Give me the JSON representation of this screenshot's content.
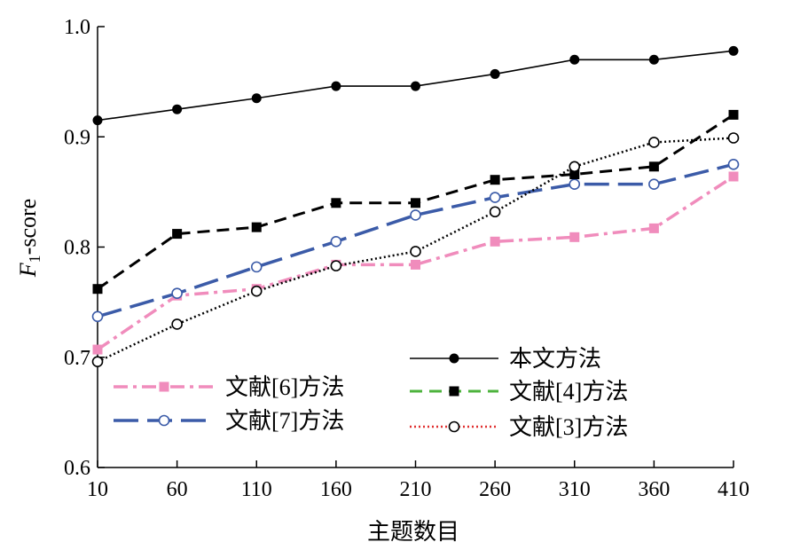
{
  "chart_data": {
    "type": "line",
    "title": "",
    "xlabel": "主题数目",
    "ylabel_italic": "F",
    "ylabel_sub": "1",
    "ylabel_rest": "-score",
    "x": [
      10,
      60,
      110,
      160,
      210,
      260,
      310,
      360,
      410
    ],
    "xlim": [
      10,
      410
    ],
    "ylim": [
      0.6,
      1.0
    ],
    "yticks": [
      "0.6",
      "0.7",
      "0.8",
      "0.9",
      "1.0"
    ],
    "xticks": [
      "10",
      "60",
      "110",
      "160",
      "210",
      "260",
      "310",
      "360",
      "410"
    ],
    "grid": false,
    "series": [
      {
        "name": "本文方法",
        "values": [
          0.915,
          0.925,
          0.935,
          0.946,
          0.946,
          0.957,
          0.97,
          0.97,
          0.978
        ],
        "color": "#000000",
        "line_style": "solid",
        "marker": "filled-circle",
        "marker_color": "#000000"
      },
      {
        "name": "文献[4]方法",
        "values": [
          0.762,
          0.812,
          0.818,
          0.84,
          0.84,
          0.861,
          0.866,
          0.873,
          0.92
        ],
        "color": "#000000",
        "legend_color": "#4db33d",
        "line_style": "dashed",
        "marker": "filled-square",
        "marker_color": "#000000"
      },
      {
        "name": "文献[3]方法",
        "values": [
          0.696,
          0.73,
          0.76,
          0.783,
          0.796,
          0.832,
          0.873,
          0.895,
          0.899
        ],
        "color": "#000000",
        "legend_color": "#e03030",
        "line_style": "dotted",
        "marker": "open-circle",
        "marker_color": "#000000"
      },
      {
        "name": "文献[6]方法",
        "values": [
          0.707,
          0.756,
          0.762,
          0.784,
          0.784,
          0.805,
          0.809,
          0.817,
          0.864
        ],
        "color": "#f08cbc",
        "line_style": "dashdot",
        "marker": "filled-square",
        "marker_color": "#f08cbc"
      },
      {
        "name": "文献[7]方法",
        "values": [
          0.737,
          0.758,
          0.782,
          0.805,
          0.829,
          0.845,
          0.857,
          0.857,
          0.875
        ],
        "color": "#3b5ba8",
        "line_style": "longdash",
        "marker": "open-circle",
        "marker_color": "#3b5ba8"
      }
    ],
    "legend_placement": "lower-right and lower-left inside plot"
  }
}
